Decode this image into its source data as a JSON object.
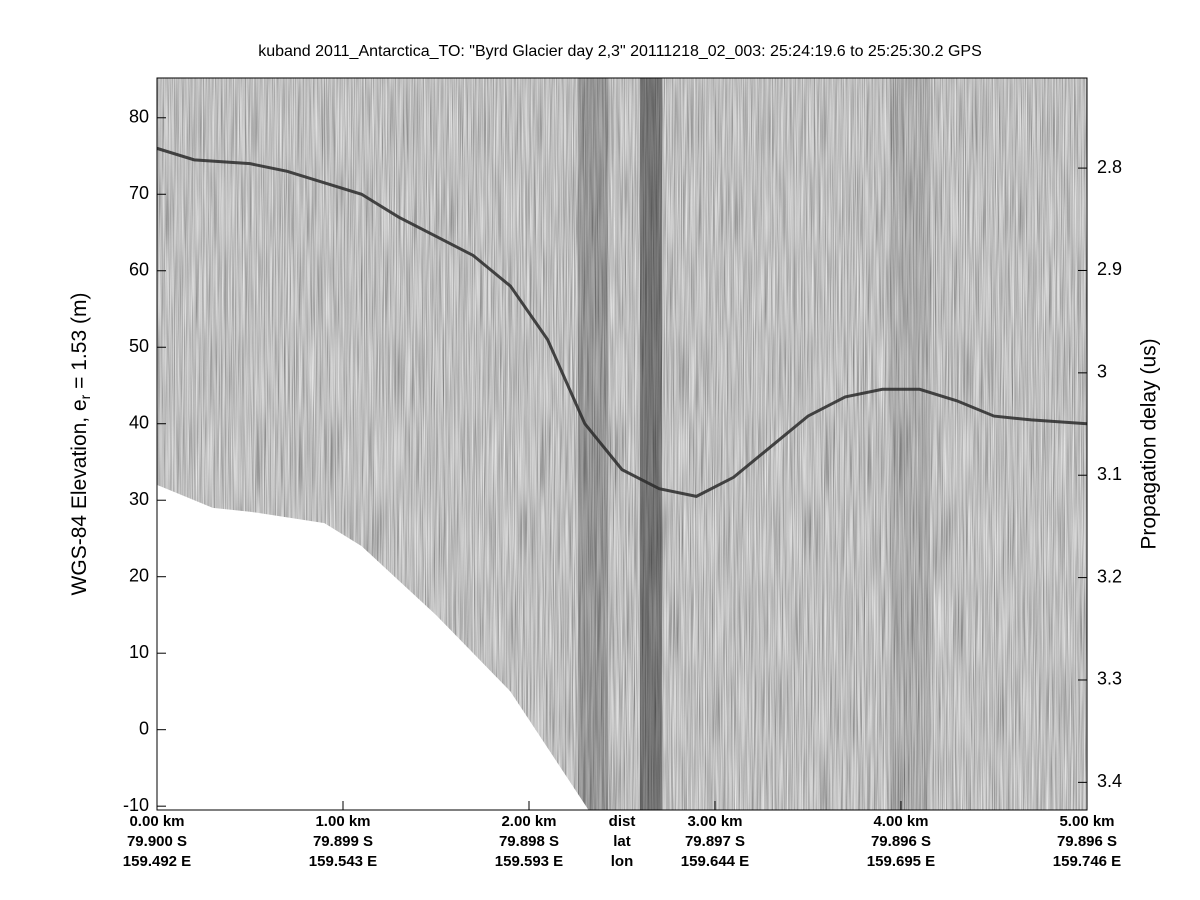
{
  "chart_data": {
    "type": "echogram",
    "title": "kuband 2011_Antarctica_TO: \"Byrd Glacier day 2,3\"  20111218_02_003: 25:24:19.6 to 25:25:30.2 GPS",
    "ylabel": {
      "text": "WGS-84 Elevation, e",
      "subscript": "r",
      "suffix": " = 1.53 (m)"
    },
    "y2label": "Propagation delay (us)",
    "xlim": [
      0,
      5
    ],
    "ylim": [
      -10.5,
      85.2
    ],
    "y2lim": [
      2.712,
      3.427
    ],
    "y2_inverted": true,
    "yticks": [
      -10,
      0,
      10,
      20,
      30,
      40,
      50,
      60,
      70,
      80
    ],
    "y2ticks": [
      2.8,
      2.9,
      3,
      3.1,
      3.2,
      3.3,
      3.4
    ],
    "xticks": [
      {
        "value": 0,
        "label": "0.00 km"
      },
      {
        "value": 1,
        "label": "1.00 km"
      },
      {
        "value": 2,
        "label": "2.00 km"
      },
      {
        "value": 3,
        "label": "3.00 km"
      },
      {
        "value": 4,
        "label": "4.00 km"
      },
      {
        "value": 5,
        "label": "5.00 km"
      }
    ],
    "lat_labels": [
      "79.900 S",
      "79.899 S",
      "79.898 S",
      "79.897 S",
      "79.896 S",
      "79.896 S"
    ],
    "lon_labels": [
      "159.492 E",
      "159.543 E",
      "159.593 E",
      "159.644 E",
      "159.695 E",
      "159.746 E"
    ],
    "row_labels": [
      "dist",
      "lat",
      "lon"
    ],
    "series": [
      {
        "color": "#2a2a2a",
        "x": [
          0,
          0.2,
          0.5,
          0.7,
          0.9,
          1.1,
          1.3,
          1.5,
          1.7,
          1.9,
          2.1,
          2.3,
          2.5,
          2.7,
          2.9,
          3.1,
          3.3,
          3.5,
          3.7,
          3.9,
          4.1,
          4.3,
          4.5,
          4.7,
          5.0
        ],
        "values": [
          76,
          74.5,
          74,
          73,
          71.5,
          70,
          67,
          64.5,
          62,
          58,
          51,
          40,
          34,
          31.5,
          30.5,
          33,
          37,
          41,
          43.5,
          44.5,
          44.5,
          43,
          41,
          40.5,
          40
        ]
      },
      {
        "color": "#ffffff",
        "x": [
          0,
          0.3,
          0.5,
          0.9,
          1.1,
          1.5,
          1.9,
          2.32
        ],
        "values": [
          32,
          29,
          28.5,
          27,
          24,
          15,
          5,
          -10.5
        ]
      }
    ]
  }
}
